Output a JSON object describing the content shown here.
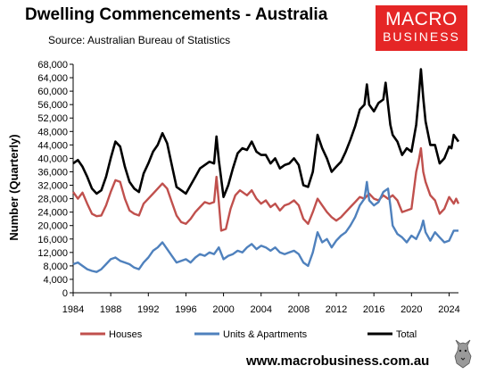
{
  "header": {
    "title": "Dwelling Commencements - Australia",
    "source": "Source:  Australian Bureau of Statistics"
  },
  "logo": {
    "line1": "MACRO",
    "line2": "BUSINESS"
  },
  "footer": {
    "url": "www.macrobusiness.com.au"
  },
  "colors": {
    "houses": "#c0504d",
    "units": "#4f81bd",
    "total": "#000000",
    "brand": "#e52626"
  },
  "chart_data": {
    "type": "line",
    "ylabel": "Number (Quarterly)",
    "ylim": [
      0,
      68000
    ],
    "yticks": [
      0,
      4000,
      8000,
      12000,
      16000,
      20000,
      24000,
      28000,
      32000,
      36000,
      40000,
      44000,
      48000,
      52000,
      56000,
      60000,
      64000,
      68000
    ],
    "ytick_labels": [
      "0",
      "4,000",
      "8,000",
      "12,000",
      "16,000",
      "20,000",
      "24,000",
      "28,000",
      "32,000",
      "36,000",
      "40,000",
      "44,000",
      "48,000",
      "52,000",
      "56,000",
      "60,000",
      "64,000",
      "68,000"
    ],
    "xlim": [
      1984,
      2025
    ],
    "xticks": [
      1984,
      1988,
      1992,
      1996,
      2000,
      2004,
      2008,
      2012,
      2016,
      2020,
      2024
    ],
    "xtick_labels": [
      "1984",
      "1988",
      "1992",
      "1996",
      "2000",
      "2004",
      "2008",
      "2012",
      "2016",
      "2020",
      "2024"
    ],
    "grid": false,
    "legend_position": "bottom",
    "series": [
      {
        "name": "Houses",
        "color": "#c0504d",
        "points": [
          [
            1984.0,
            30000
          ],
          [
            1984.5,
            28000
          ],
          [
            1985.0,
            29800
          ],
          [
            1985.5,
            26500
          ],
          [
            1986.0,
            23500
          ],
          [
            1986.5,
            22800
          ],
          [
            1987.0,
            23000
          ],
          [
            1987.5,
            26000
          ],
          [
            1988.0,
            30000
          ],
          [
            1988.5,
            33500
          ],
          [
            1989.0,
            33000
          ],
          [
            1989.5,
            28000
          ],
          [
            1990.0,
            24500
          ],
          [
            1990.5,
            23500
          ],
          [
            1991.0,
            23000
          ],
          [
            1991.5,
            26500
          ],
          [
            1992.0,
            28000
          ],
          [
            1992.5,
            29500
          ],
          [
            1993.0,
            31000
          ],
          [
            1993.5,
            32500
          ],
          [
            1994.0,
            31000
          ],
          [
            1994.5,
            27000
          ],
          [
            1995.0,
            23000
          ],
          [
            1995.5,
            21000
          ],
          [
            1996.0,
            20500
          ],
          [
            1996.5,
            22000
          ],
          [
            1997.0,
            24000
          ],
          [
            1997.5,
            25500
          ],
          [
            1998.0,
            27000
          ],
          [
            1998.5,
            26500
          ],
          [
            1999.0,
            27000
          ],
          [
            1999.25,
            34500
          ],
          [
            1999.5,
            27000
          ],
          [
            1999.75,
            18500
          ],
          [
            2000.25,
            19000
          ],
          [
            2000.75,
            25000
          ],
          [
            2001.25,
            29000
          ],
          [
            2001.75,
            30500
          ],
          [
            2002.5,
            29000
          ],
          [
            2003.0,
            30500
          ],
          [
            2003.5,
            28000
          ],
          [
            2004.0,
            26500
          ],
          [
            2004.5,
            27500
          ],
          [
            2005.0,
            25500
          ],
          [
            2005.5,
            26500
          ],
          [
            2006.0,
            24500
          ],
          [
            2006.5,
            26000
          ],
          [
            2007.0,
            26500
          ],
          [
            2007.5,
            27500
          ],
          [
            2008.0,
            26000
          ],
          [
            2008.5,
            22000
          ],
          [
            2009.0,
            20500
          ],
          [
            2009.5,
            24000
          ],
          [
            2010.0,
            28000
          ],
          [
            2010.5,
            26000
          ],
          [
            2011.0,
            24000
          ],
          [
            2011.5,
            22500
          ],
          [
            2012.0,
            21500
          ],
          [
            2012.5,
            22500
          ],
          [
            2013.0,
            24000
          ],
          [
            2013.5,
            25500
          ],
          [
            2014.0,
            27000
          ],
          [
            2014.5,
            28500
          ],
          [
            2015.0,
            28000
          ],
          [
            2015.5,
            29500
          ],
          [
            2016.0,
            28000
          ],
          [
            2016.5,
            27500
          ],
          [
            2017.0,
            29000
          ],
          [
            2017.5,
            28000
          ],
          [
            2018.0,
            29000
          ],
          [
            2018.5,
            27500
          ],
          [
            2019.0,
            24000
          ],
          [
            2019.5,
            24500
          ],
          [
            2020.0,
            25000
          ],
          [
            2020.5,
            36000
          ],
          [
            2020.75,
            39000
          ],
          [
            2021.0,
            43000
          ],
          [
            2021.25,
            36000
          ],
          [
            2021.5,
            33000
          ],
          [
            2022.0,
            29000
          ],
          [
            2022.5,
            27500
          ],
          [
            2023.0,
            23500
          ],
          [
            2023.5,
            25000
          ],
          [
            2024.0,
            28500
          ],
          [
            2024.5,
            26500
          ],
          [
            2024.75,
            28000
          ],
          [
            2025.0,
            26500
          ]
        ]
      },
      {
        "name": "Units & Apartments",
        "color": "#4f81bd",
        "points": [
          [
            1984.0,
            8500
          ],
          [
            1984.5,
            9000
          ],
          [
            1985.0,
            8000
          ],
          [
            1985.5,
            7000
          ],
          [
            1986.0,
            6500
          ],
          [
            1986.5,
            6200
          ],
          [
            1987.0,
            7000
          ],
          [
            1987.5,
            8500
          ],
          [
            1988.0,
            10000
          ],
          [
            1988.5,
            10500
          ],
          [
            1989.0,
            9500
          ],
          [
            1989.5,
            9000
          ],
          [
            1990.0,
            8500
          ],
          [
            1990.5,
            7500
          ],
          [
            1991.0,
            7000
          ],
          [
            1991.5,
            9000
          ],
          [
            1992.0,
            10500
          ],
          [
            1992.5,
            12500
          ],
          [
            1993.0,
            13500
          ],
          [
            1993.5,
            15000
          ],
          [
            1994.0,
            13000
          ],
          [
            1994.5,
            11000
          ],
          [
            1995.0,
            9000
          ],
          [
            1995.5,
            9500
          ],
          [
            1996.0,
            10000
          ],
          [
            1996.5,
            9000
          ],
          [
            1997.0,
            10500
          ],
          [
            1997.5,
            11500
          ],
          [
            1998.0,
            11000
          ],
          [
            1998.5,
            12000
          ],
          [
            1999.0,
            11500
          ],
          [
            1999.5,
            13500
          ],
          [
            2000.0,
            10000
          ],
          [
            2000.5,
            11000
          ],
          [
            2001.0,
            11500
          ],
          [
            2001.5,
            12500
          ],
          [
            2002.0,
            12000
          ],
          [
            2002.5,
            13500
          ],
          [
            2003.0,
            14500
          ],
          [
            2003.5,
            13000
          ],
          [
            2004.0,
            14000
          ],
          [
            2004.5,
            13500
          ],
          [
            2005.0,
            12500
          ],
          [
            2005.5,
            13500
          ],
          [
            2006.0,
            12000
          ],
          [
            2006.5,
            11500
          ],
          [
            2007.0,
            12000
          ],
          [
            2007.5,
            12500
          ],
          [
            2008.0,
            11500
          ],
          [
            2008.5,
            9000
          ],
          [
            2009.0,
            8000
          ],
          [
            2009.5,
            12000
          ],
          [
            2010.0,
            18000
          ],
          [
            2010.5,
            15000
          ],
          [
            2011.0,
            16000
          ],
          [
            2011.5,
            13500
          ],
          [
            2012.0,
            15500
          ],
          [
            2012.5,
            17000
          ],
          [
            2013.0,
            18000
          ],
          [
            2013.5,
            20000
          ],
          [
            2014.0,
            22500
          ],
          [
            2014.5,
            26000
          ],
          [
            2015.0,
            28000
          ],
          [
            2015.25,
            33000
          ],
          [
            2015.5,
            27500
          ],
          [
            2016.0,
            26000
          ],
          [
            2016.5,
            27000
          ],
          [
            2017.0,
            30000
          ],
          [
            2017.5,
            31000
          ],
          [
            2017.75,
            26000
          ],
          [
            2018.0,
            20000
          ],
          [
            2018.5,
            17500
          ],
          [
            2019.0,
            16500
          ],
          [
            2019.5,
            15000
          ],
          [
            2020.0,
            17000
          ],
          [
            2020.5,
            16000
          ],
          [
            2021.0,
            19000
          ],
          [
            2021.25,
            21500
          ],
          [
            2021.5,
            18000
          ],
          [
            2022.0,
            15500
          ],
          [
            2022.5,
            18000
          ],
          [
            2023.0,
            16500
          ],
          [
            2023.5,
            15000
          ],
          [
            2024.0,
            15500
          ],
          [
            2024.5,
            18500
          ],
          [
            2025.0,
            18500
          ]
        ]
      },
      {
        "name": "Total",
        "color": "#000000",
        "points": [
          [
            1984.0,
            38500
          ],
          [
            1984.5,
            39500
          ],
          [
            1985.0,
            37500
          ],
          [
            1985.5,
            34500
          ],
          [
            1986.0,
            31000
          ],
          [
            1986.5,
            29500
          ],
          [
            1987.0,
            30500
          ],
          [
            1987.5,
            34500
          ],
          [
            1988.0,
            40000
          ],
          [
            1988.5,
            45000
          ],
          [
            1989.0,
            43500
          ],
          [
            1989.5,
            37500
          ],
          [
            1990.0,
            33000
          ],
          [
            1990.5,
            31000
          ],
          [
            1991.0,
            30000
          ],
          [
            1991.5,
            35500
          ],
          [
            1992.0,
            38500
          ],
          [
            1992.5,
            42000
          ],
          [
            1993.0,
            44000
          ],
          [
            1993.5,
            47500
          ],
          [
            1994.0,
            44500
          ],
          [
            1994.5,
            38000
          ],
          [
            1995.0,
            31500
          ],
          [
            1995.5,
            30500
          ],
          [
            1996.0,
            29500
          ],
          [
            1996.5,
            32000
          ],
          [
            1997.0,
            34500
          ],
          [
            1997.5,
            37000
          ],
          [
            1998.0,
            38000
          ],
          [
            1998.5,
            39000
          ],
          [
            1999.0,
            38500
          ],
          [
            1999.25,
            46500
          ],
          [
            1999.5,
            39500
          ],
          [
            2000.0,
            28500
          ],
          [
            2000.5,
            32000
          ],
          [
            2001.0,
            37000
          ],
          [
            2001.5,
            41500
          ],
          [
            2002.0,
            43000
          ],
          [
            2002.5,
            42500
          ],
          [
            2003.0,
            45000
          ],
          [
            2003.5,
            42000
          ],
          [
            2004.0,
            41000
          ],
          [
            2004.5,
            41000
          ],
          [
            2005.0,
            38500
          ],
          [
            2005.5,
            40000
          ],
          [
            2006.0,
            37000
          ],
          [
            2006.5,
            38000
          ],
          [
            2007.0,
            38500
          ],
          [
            2007.5,
            40000
          ],
          [
            2008.0,
            38000
          ],
          [
            2008.5,
            32000
          ],
          [
            2009.0,
            31500
          ],
          [
            2009.5,
            36000
          ],
          [
            2010.0,
            47000
          ],
          [
            2010.5,
            43000
          ],
          [
            2011.0,
            40000
          ],
          [
            2011.5,
            36000
          ],
          [
            2012.0,
            37500
          ],
          [
            2012.5,
            39000
          ],
          [
            2013.0,
            42000
          ],
          [
            2013.5,
            45500
          ],
          [
            2014.0,
            49500
          ],
          [
            2014.5,
            54500
          ],
          [
            2015.0,
            56000
          ],
          [
            2015.25,
            62000
          ],
          [
            2015.5,
            56000
          ],
          [
            2016.0,
            54000
          ],
          [
            2016.5,
            56500
          ],
          [
            2017.0,
            57500
          ],
          [
            2017.25,
            62500
          ],
          [
            2017.5,
            56000
          ],
          [
            2017.75,
            50000
          ],
          [
            2018.0,
            47000
          ],
          [
            2018.5,
            45000
          ],
          [
            2019.0,
            41000
          ],
          [
            2019.5,
            43000
          ],
          [
            2020.0,
            42000
          ],
          [
            2020.5,
            50000
          ],
          [
            2020.75,
            57500
          ],
          [
            2021.0,
            66500
          ],
          [
            2021.25,
            58000
          ],
          [
            2021.5,
            51000
          ],
          [
            2022.0,
            44000
          ],
          [
            2022.5,
            44000
          ],
          [
            2023.0,
            38500
          ],
          [
            2023.5,
            40000
          ],
          [
            2024.0,
            43500
          ],
          [
            2024.25,
            43000
          ],
          [
            2024.5,
            47000
          ],
          [
            2025.0,
            45000
          ]
        ]
      }
    ]
  }
}
